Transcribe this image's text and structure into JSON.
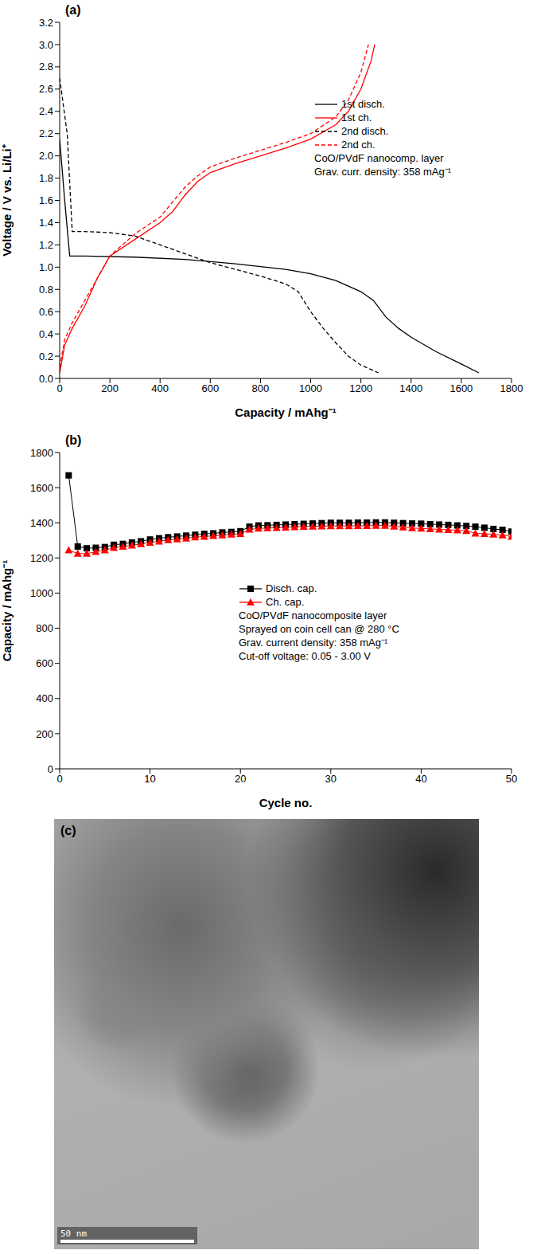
{
  "chart_data": [
    {
      "type": "line",
      "title": "(a)",
      "x_label": "Capacity / mAhg⁻¹",
      "y_label": "Voltage / V vs. Li/Li⁺",
      "xlim": [
        0,
        1800
      ],
      "xticks": [
        0,
        200,
        400,
        600,
        800,
        1000,
        1200,
        1400,
        1600,
        1800
      ],
      "ylim": [
        0,
        3.2
      ],
      "yticks": [
        {
          "value": 0,
          "label": "0.0"
        },
        0.2,
        0.4,
        0.6,
        0.8,
        {
          "value": 1,
          "label": "1.0"
        },
        1.2,
        1.4,
        1.6,
        1.8,
        {
          "value": 2,
          "label": "2.0"
        },
        2.2,
        2.4,
        2.6,
        2.8,
        {
          "value": 3,
          "label": "3.0"
        },
        3.2
      ],
      "legend": "right",
      "annotations": [
        "CoO/PVdF nanocomp. layer",
        "Grav. curr. density: 358 mAg⁻¹"
      ],
      "series": [
        {
          "name": "1st disch.",
          "color": "#000000",
          "line_style": "solid",
          "x": [
            0,
            20,
            40,
            100,
            300,
            500,
            700,
            900,
            1000,
            1100,
            1200,
            1250,
            1300,
            1350,
            1400,
            1500,
            1600,
            1670
          ],
          "values": [
            2.15,
            1.6,
            1.1,
            1.1,
            1.09,
            1.07,
            1.03,
            0.98,
            0.94,
            0.88,
            0.78,
            0.7,
            0.55,
            0.45,
            0.37,
            0.24,
            0.13,
            0.05
          ]
        },
        {
          "name": "1st ch.",
          "color": "#ff0000",
          "line_style": "solid",
          "x": [
            0,
            20,
            50,
            100,
            150,
            200,
            300,
            400,
            450,
            500,
            550,
            600,
            700,
            800,
            900,
            1000,
            1100,
            1150,
            1200,
            1240,
            1255
          ],
          "values": [
            0.05,
            0.3,
            0.45,
            0.65,
            0.9,
            1.1,
            1.25,
            1.4,
            1.5,
            1.65,
            1.77,
            1.85,
            1.93,
            2.0,
            2.07,
            2.15,
            2.28,
            2.4,
            2.6,
            2.85,
            3.0
          ]
        },
        {
          "name": "2nd disch.",
          "color": "#000000",
          "line_style": "dashed",
          "x": [
            0,
            30,
            50,
            100,
            200,
            300,
            400,
            500,
            600,
            700,
            800,
            900,
            950,
            1000,
            1050,
            1100,
            1150,
            1200,
            1270
          ],
          "values": [
            2.7,
            2.2,
            1.32,
            1.32,
            1.31,
            1.28,
            1.2,
            1.12,
            1.04,
            0.98,
            0.92,
            0.85,
            0.78,
            0.6,
            0.45,
            0.32,
            0.2,
            0.12,
            0.05
          ]
        },
        {
          "name": "2nd ch.",
          "color": "#ff0000",
          "line_style": "dashed",
          "x": [
            0,
            20,
            50,
            100,
            150,
            200,
            300,
            400,
            500,
            550,
            600,
            700,
            800,
            900,
            1000,
            1100,
            1150,
            1200,
            1230
          ],
          "values": [
            0.1,
            0.35,
            0.5,
            0.7,
            0.9,
            1.1,
            1.3,
            1.45,
            1.72,
            1.82,
            1.9,
            1.98,
            2.05,
            2.12,
            2.2,
            2.35,
            2.5,
            2.75,
            3.0
          ]
        }
      ]
    },
    {
      "type": "line",
      "title": "(b)",
      "x_label": "Cycle no.",
      "y_label": "Capacity / mAhg⁻¹",
      "xlim": [
        0,
        50
      ],
      "xticks": [
        0,
        10,
        20,
        30,
        40,
        50
      ],
      "ylim": [
        0,
        1800
      ],
      "yticks": [
        0,
        200,
        400,
        600,
        800,
        1000,
        1200,
        1400,
        1600,
        1800
      ],
      "legend": "right",
      "annotations": [
        "CoO/PVdF nanocomposite layer",
        "Sprayed on coin cell can @ 280 °C",
        "Grav. current density: 358 mAg⁻¹",
        "Cut-off voltage: 0.05 - 3.00 V"
      ],
      "x": [
        1,
        2,
        3,
        4,
        5,
        6,
        7,
        8,
        9,
        10,
        11,
        12,
        13,
        14,
        15,
        16,
        17,
        18,
        19,
        20,
        21,
        22,
        23,
        24,
        25,
        26,
        27,
        28,
        29,
        30,
        31,
        32,
        33,
        34,
        35,
        36,
        37,
        38,
        39,
        40,
        41,
        42,
        43,
        44,
        45,
        46,
        47,
        48,
        49,
        50
      ],
      "series": [
        {
          "name": "Disch. cap.",
          "color": "#000000",
          "marker": "square",
          "values": [
            1670,
            1265,
            1255,
            1258,
            1262,
            1275,
            1280,
            1288,
            1295,
            1305,
            1312,
            1318,
            1322,
            1327,
            1332,
            1337,
            1340,
            1345,
            1348,
            1352,
            1378,
            1385,
            1386,
            1388,
            1390,
            1392,
            1394,
            1396,
            1398,
            1400,
            1400,
            1400,
            1401,
            1401,
            1402,
            1402,
            1400,
            1398,
            1396,
            1395,
            1392,
            1390,
            1388,
            1385,
            1382,
            1378,
            1372,
            1365,
            1360,
            1350
          ]
        },
        {
          "name": "Ch. cap.",
          "color": "#ff0000",
          "marker": "triangle",
          "values": [
            1245,
            1225,
            1225,
            1235,
            1245,
            1258,
            1265,
            1272,
            1280,
            1288,
            1295,
            1302,
            1307,
            1312,
            1318,
            1322,
            1326,
            1330,
            1334,
            1338,
            1362,
            1368,
            1370,
            1372,
            1374,
            1376,
            1378,
            1380,
            1381,
            1382,
            1382,
            1382,
            1383,
            1383,
            1384,
            1384,
            1380,
            1375,
            1370,
            1368,
            1365,
            1363,
            1360,
            1358,
            1355,
            1340,
            1338,
            1334,
            1330,
            1322
          ]
        }
      ]
    }
  ],
  "image": {
    "title": "(c)",
    "scale_bar": "50 nm"
  }
}
